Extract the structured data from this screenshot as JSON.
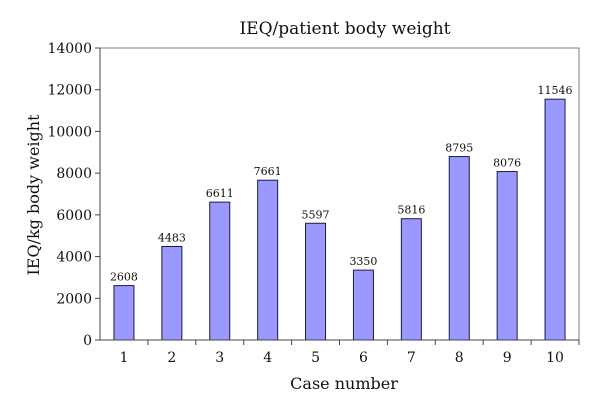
{
  "chart_data": {
    "type": "bar",
    "title": "IEQ/patient body weight",
    "xlabel": "Case number",
    "ylabel": "IEQ/kg body weight",
    "categories": [
      "1",
      "2",
      "3",
      "4",
      "5",
      "6",
      "7",
      "8",
      "9",
      "10"
    ],
    "values": [
      2608,
      4483,
      6611,
      7661,
      5597,
      3350,
      5816,
      8795,
      8076,
      11546
    ],
    "data_labels": [
      "2608",
      "4483",
      "6611",
      "7661",
      "5597",
      "3350",
      "5816",
      "8795",
      "8076",
      "11546"
    ],
    "ylim": [
      0,
      14000
    ],
    "yticks": [
      0,
      2000,
      4000,
      6000,
      8000,
      10000,
      12000,
      14000
    ],
    "ytick_labels": [
      "0",
      "2000",
      "4000",
      "6000",
      "8000",
      "10000",
      "12000",
      "14000"
    ],
    "grid": false,
    "legend": "none",
    "bar_color": "#9999ff"
  }
}
